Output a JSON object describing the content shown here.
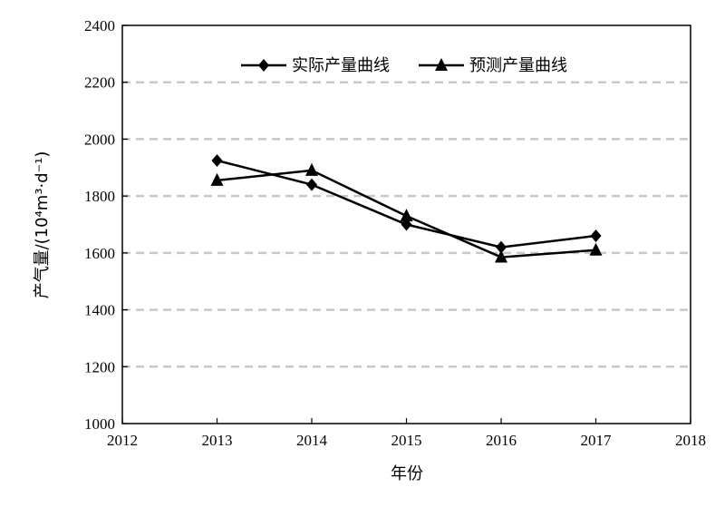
{
  "chart_data": {
    "type": "line",
    "title": "",
    "xlabel": "年份",
    "ylabel": "产气量/(10⁴m³·d⁻¹)",
    "xlim": [
      2012,
      2018
    ],
    "ylim": [
      1000,
      2400
    ],
    "x_ticks": [
      2012,
      2013,
      2014,
      2015,
      2016,
      2017,
      2018
    ],
    "y_ticks": [
      1000,
      1200,
      1400,
      1600,
      1800,
      2000,
      2200,
      2400
    ],
    "grid": "horizontal dashed",
    "legend_position": "top",
    "series": [
      {
        "name": "实际产量曲线",
        "marker": "diamond",
        "color": "#000000",
        "x": [
          2013,
          2014,
          2015,
          2016,
          2017
        ],
        "y": [
          1925,
          1840,
          1700,
          1620,
          1660
        ]
      },
      {
        "name": "预测产量曲线",
        "marker": "triangle",
        "color": "#000000",
        "x": [
          2013,
          2014,
          2015,
          2016,
          2017
        ],
        "y": [
          1855,
          1890,
          1730,
          1585,
          1610
        ]
      }
    ]
  }
}
